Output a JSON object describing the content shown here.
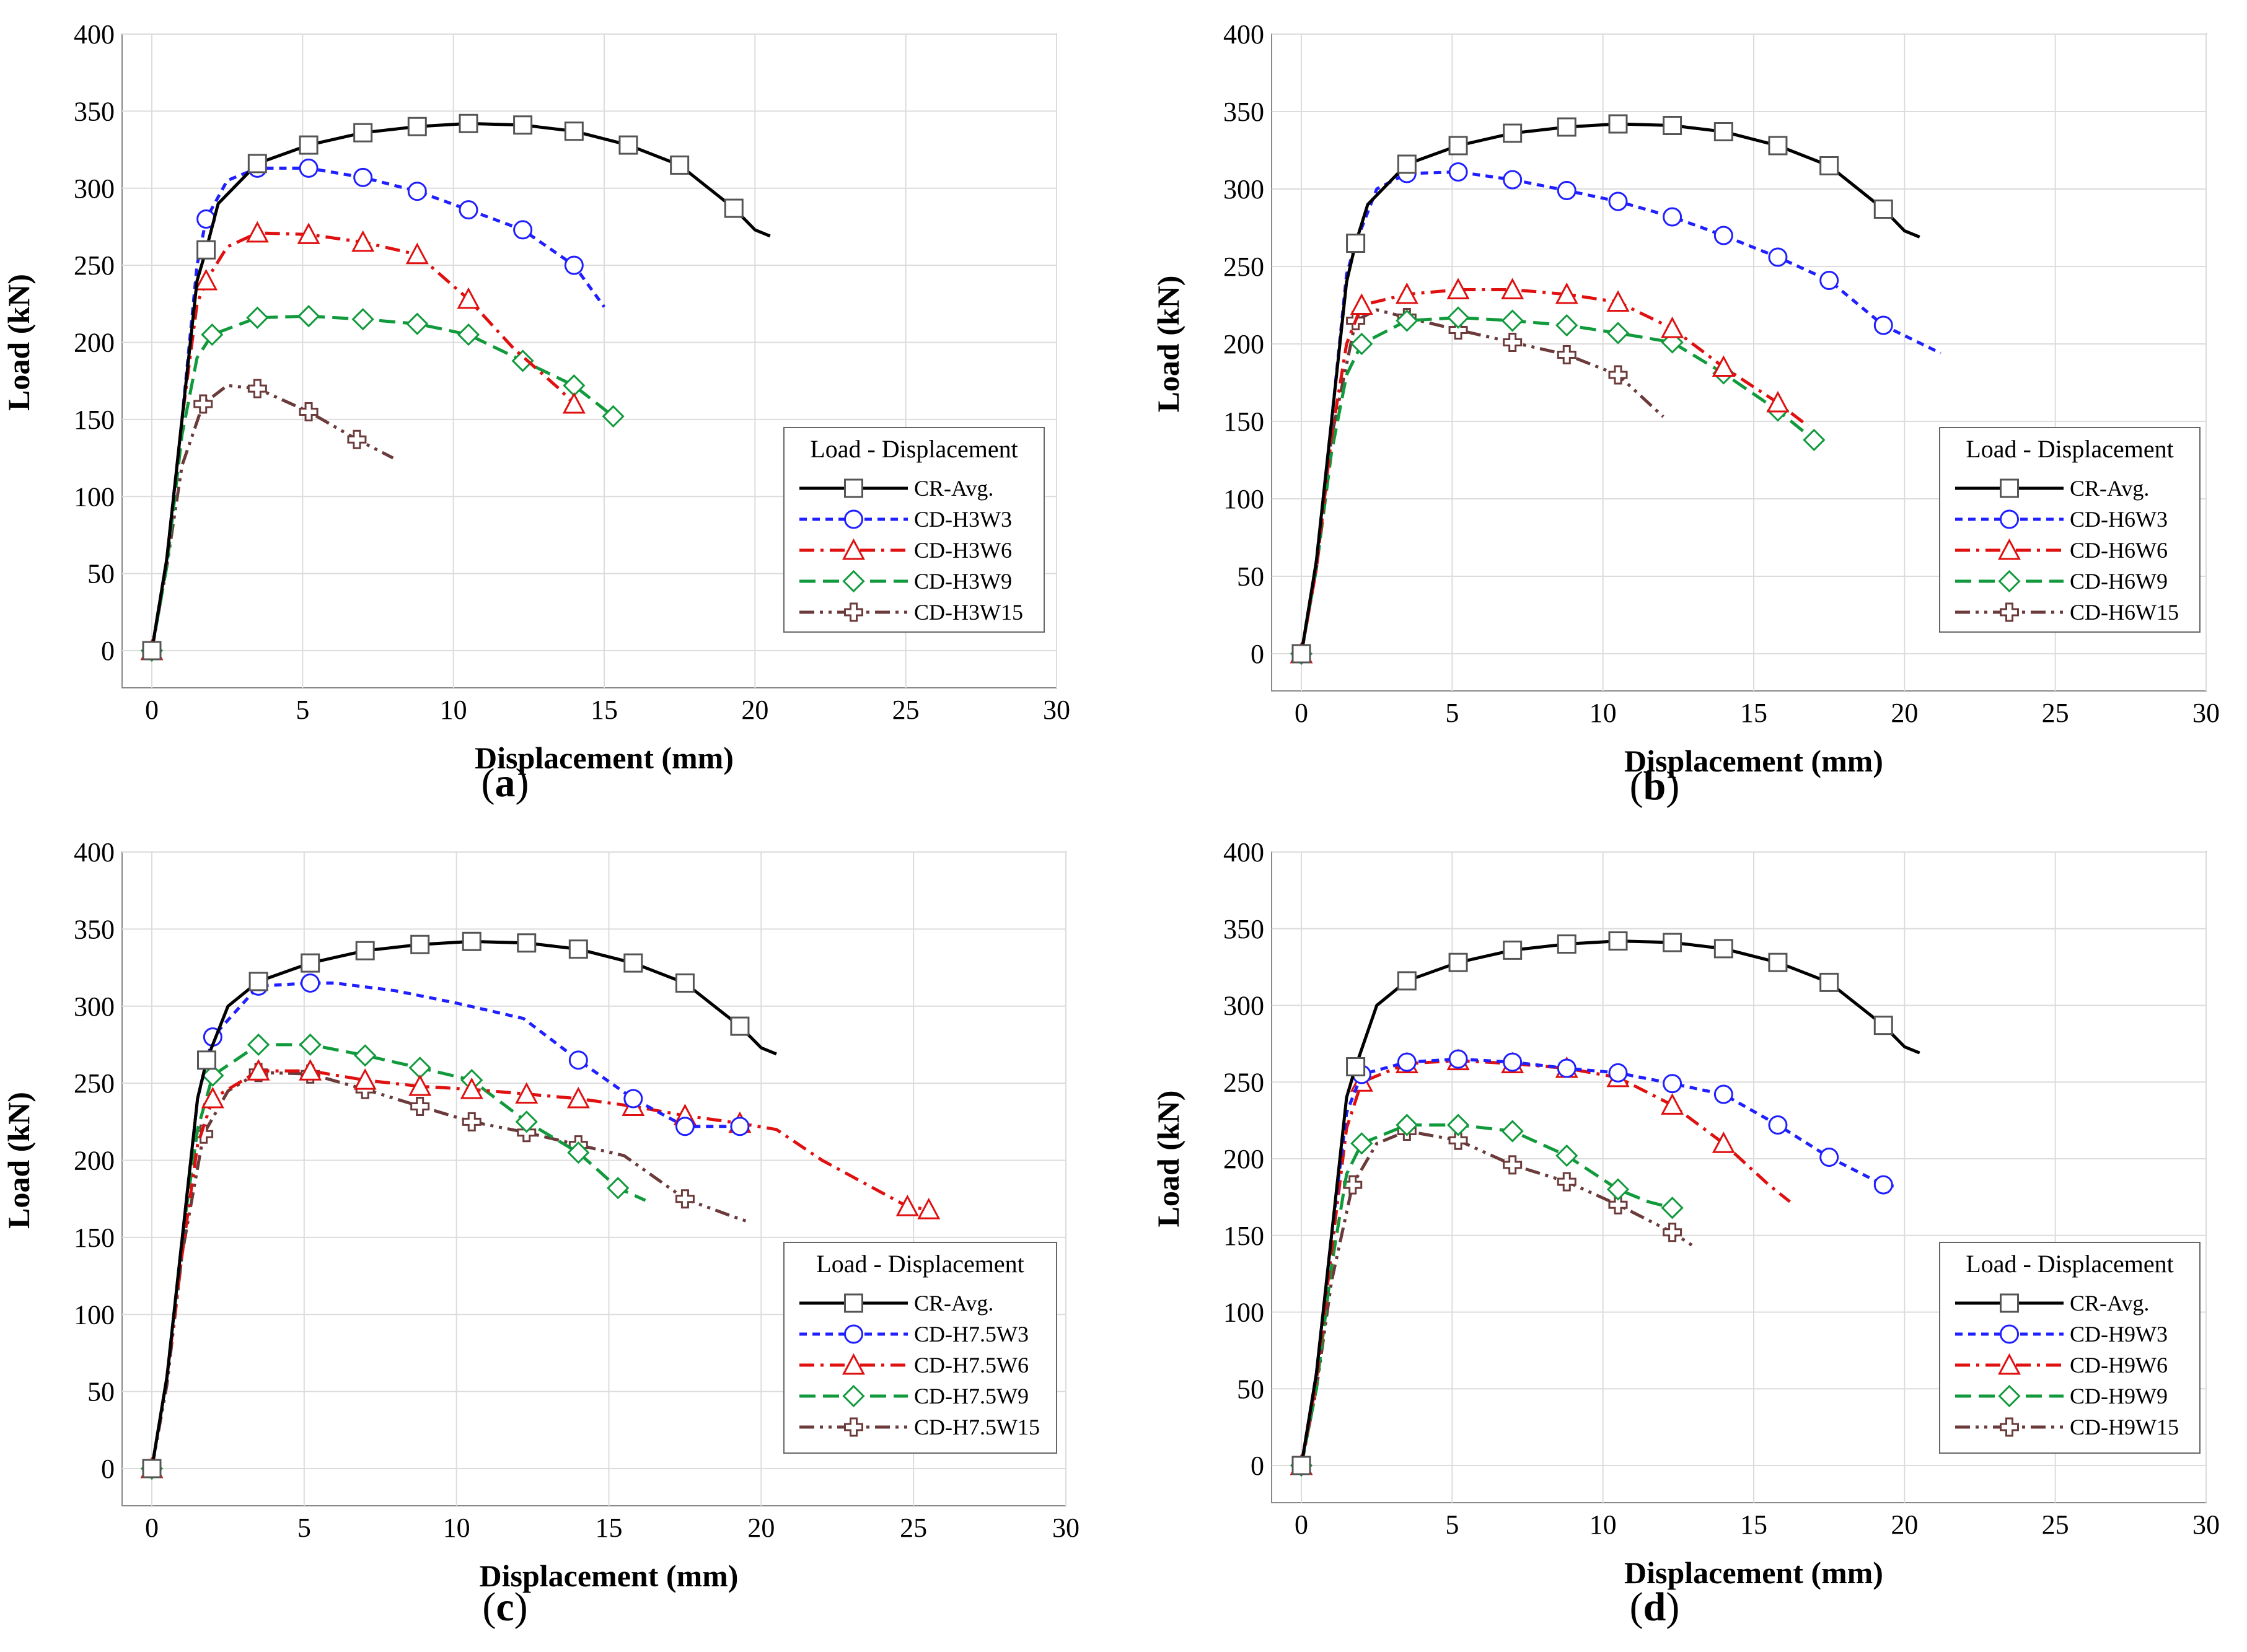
{
  "figure": {
    "shared": {
      "xlabel": "Displacement (mm)",
      "ylabel": "Load (kN)",
      "xlim": [
        0,
        30
      ],
      "ylim": [
        0,
        400
      ],
      "xticks": [
        0,
        5,
        10,
        15,
        20,
        25,
        30
      ],
      "yticks": [
        0,
        50,
        100,
        150,
        200,
        250,
        300,
        350,
        400
      ],
      "grid": true,
      "legend_title": "Load - Displacement",
      "legend_position": "bottom-right"
    },
    "series_styles": [
      {
        "color": "#000000",
        "dash": "none",
        "marker": "square"
      },
      {
        "color": "#1f1fff",
        "dash": "short-dash",
        "marker": "circle"
      },
      {
        "color": "#e01010",
        "dash": "dash-dot",
        "marker": "triangle"
      },
      {
        "color": "#109a3c",
        "dash": "long-dash",
        "marker": "diamond"
      },
      {
        "color": "#6b3a3a",
        "dash": "dash-dot-dot",
        "marker": "cross"
      }
    ]
  },
  "chart_data": [
    {
      "type": "line",
      "panel_label": "a",
      "series": [
        {
          "name": "CR-Avg.",
          "x": [
            0,
            0.5,
            1,
            1.5,
            1.8,
            2.2,
            3.5,
            5.2,
            7,
            8.8,
            10.5,
            12.3,
            14,
            15.8,
            17.5,
            19.3,
            20,
            20.5
          ],
          "y": [
            0,
            60,
            150,
            240,
            260,
            290,
            316,
            328,
            336,
            340,
            342,
            341,
            337,
            328,
            315,
            287,
            273,
            269
          ]
        },
        {
          "name": "CD-H3W3",
          "x": [
            0,
            0.5,
            1,
            1.5,
            1.8,
            2.5,
            3.5,
            5.2,
            7,
            8.8,
            10.5,
            12.3,
            14,
            15
          ],
          "y": [
            0,
            60,
            150,
            250,
            280,
            305,
            313,
            313,
            307,
            298,
            286,
            273,
            250,
            223
          ]
        },
        {
          "name": "CD-H3W6",
          "x": [
            0,
            0.5,
            1,
            1.5,
            1.8,
            2.5,
            3.5,
            5.2,
            7,
            8.8,
            10.5,
            12,
            13.5,
            14
          ],
          "y": [
            0,
            60,
            150,
            225,
            240,
            262,
            271,
            270,
            265,
            257,
            228,
            196,
            170,
            160
          ]
        },
        {
          "name": "CD-H3W9",
          "x": [
            0,
            0.5,
            1,
            1.5,
            2,
            3.5,
            5.2,
            7,
            8.8,
            10.5,
            12.3,
            14,
            15.3
          ],
          "y": [
            0,
            55,
            140,
            190,
            205,
            216,
            217,
            215,
            212,
            205,
            188,
            172,
            152
          ]
        },
        {
          "name": "CD-H3W15",
          "x": [
            0,
            0.5,
            1,
            1.7,
            2.5,
            3.5,
            5.2,
            6.8,
            7.5,
            8
          ],
          "y": [
            0,
            55,
            120,
            160,
            172,
            170,
            155,
            137,
            130,
            125
          ]
        }
      ]
    },
    {
      "type": "line",
      "panel_label": "b",
      "series": [
        {
          "name": "CR-Avg.",
          "x": [
            0,
            0.5,
            1,
            1.5,
            1.8,
            2.2,
            3.5,
            5.2,
            7,
            8.8,
            10.5,
            12.3,
            14,
            15.8,
            17.5,
            19.3,
            20,
            20.5
          ],
          "y": [
            0,
            60,
            150,
            240,
            265,
            290,
            316,
            328,
            336,
            340,
            342,
            341,
            337,
            328,
            315,
            287,
            273,
            269
          ]
        },
        {
          "name": "CD-H6W3",
          "x": [
            0,
            0.5,
            1,
            1.5,
            1.8,
            2.5,
            3.5,
            5.2,
            7,
            8.8,
            10.5,
            12.3,
            14,
            15.8,
            17.5,
            19.3,
            21.2
          ],
          "y": [
            0,
            60,
            150,
            245,
            265,
            300,
            310,
            311,
            306,
            299,
            292,
            282,
            270,
            256,
            241,
            212,
            194
          ]
        },
        {
          "name": "CD-H6W6",
          "x": [
            0,
            0.5,
            1,
            1.5,
            2,
            3.5,
            5.2,
            7,
            8.8,
            10.5,
            12.3,
            14,
            15.8,
            16.8
          ],
          "y": [
            0,
            55,
            140,
            200,
            225,
            232,
            235,
            235,
            232,
            227,
            210,
            185,
            162,
            147
          ]
        },
        {
          "name": "CD-H6W9",
          "x": [
            0,
            0.5,
            1,
            1.5,
            2,
            3.5,
            5.2,
            7,
            8.8,
            10.5,
            12.3,
            14,
            15.8,
            17
          ],
          "y": [
            0,
            55,
            130,
            180,
            200,
            215,
            217,
            215,
            212,
            207,
            201,
            181,
            157,
            138
          ]
        },
        {
          "name": "CD-H6W15",
          "x": [
            0,
            0.5,
            1,
            1.8,
            2.5,
            3.5,
            5.2,
            7,
            8.8,
            10.5,
            12
          ],
          "y": [
            0,
            55,
            140,
            215,
            222,
            217,
            209,
            201,
            193,
            180,
            153
          ]
        }
      ]
    },
    {
      "type": "line",
      "panel_label": "c",
      "series": [
        {
          "name": "CR-Avg.",
          "x": [
            0,
            0.5,
            1,
            1.5,
            1.8,
            2.5,
            3.5,
            5.2,
            7,
            8.8,
            10.5,
            12.3,
            14,
            15.8,
            17.5,
            19.3,
            20,
            20.5
          ],
          "y": [
            0,
            60,
            150,
            240,
            265,
            300,
            316,
            328,
            336,
            340,
            342,
            341,
            337,
            328,
            315,
            287,
            273,
            269
          ]
        },
        {
          "name": "CD-H7.5W3",
          "x": [
            0,
            0.5,
            1,
            1.5,
            2,
            3.5,
            5.2,
            6,
            8,
            10,
            12.2,
            14,
            15.8,
            17.5,
            19.3
          ],
          "y": [
            0,
            60,
            150,
            240,
            280,
            313,
            315,
            315,
            310,
            302,
            292,
            265,
            240,
            222,
            222
          ]
        },
        {
          "name": "CD-H7.5W6",
          "x": [
            0,
            0.5,
            1,
            1.5,
            2,
            3.5,
            5.2,
            7,
            8.8,
            10.5,
            12.3,
            14,
            15.8,
            17.5,
            19.3,
            20.5,
            22,
            24.8,
            25.5
          ],
          "y": [
            0,
            60,
            140,
            210,
            240,
            258,
            258,
            252,
            248,
            246,
            243,
            240,
            235,
            229,
            224,
            220,
            200,
            170,
            168
          ]
        },
        {
          "name": "CD-H7.5W9",
          "x": [
            0,
            0.5,
            1,
            1.5,
            2,
            3.5,
            5.2,
            7,
            8.8,
            10.5,
            12.3,
            14,
            15.3,
            16.2
          ],
          "y": [
            0,
            60,
            150,
            220,
            255,
            275,
            275,
            268,
            260,
            252,
            225,
            205,
            182,
            174
          ]
        },
        {
          "name": "CD-H7.5W15",
          "x": [
            0,
            0.5,
            1,
            1.7,
            2.5,
            3.5,
            5.2,
            7,
            8.8,
            10.5,
            12.3,
            14,
            15.5,
            17.5,
            19,
            19.6
          ],
          "y": [
            0,
            55,
            140,
            217,
            245,
            257,
            256,
            246,
            235,
            225,
            218,
            210,
            203,
            175,
            164,
            160
          ]
        }
      ]
    },
    {
      "type": "line",
      "panel_label": "d",
      "series": [
        {
          "name": "CR-Avg.",
          "x": [
            0,
            0.5,
            1,
            1.5,
            1.8,
            2.5,
            3.5,
            5.2,
            7,
            8.8,
            10.5,
            12.3,
            14,
            15.8,
            17.5,
            19.3,
            20,
            20.5
          ],
          "y": [
            0,
            60,
            150,
            240,
            260,
            300,
            316,
            328,
            336,
            340,
            342,
            341,
            337,
            328,
            315,
            287,
            273,
            269
          ]
        },
        {
          "name": "CD-H9W3",
          "x": [
            0,
            0.5,
            1,
            1.5,
            2,
            3.5,
            5.2,
            7,
            8.8,
            10.5,
            12.3,
            14,
            15.8,
            17.5,
            19.3,
            19.7
          ],
          "y": [
            0,
            60,
            150,
            230,
            255,
            263,
            265,
            263,
            259,
            256,
            249,
            242,
            222,
            201,
            183,
            182
          ]
        },
        {
          "name": "CD-H9W6",
          "x": [
            0,
            0.5,
            1,
            1.5,
            2,
            3.5,
            5.2,
            7,
            8.8,
            10.5,
            12.3,
            14,
            15.5,
            16.2
          ],
          "y": [
            0,
            55,
            140,
            220,
            250,
            262,
            264,
            262,
            259,
            253,
            235,
            210,
            183,
            172
          ]
        },
        {
          "name": "CD-H9W9",
          "x": [
            0,
            0.5,
            1,
            1.5,
            2,
            3.5,
            5.2,
            7,
            8.8,
            10.5,
            11.5,
            12.3
          ],
          "y": [
            0,
            50,
            130,
            190,
            210,
            222,
            222,
            218,
            202,
            180,
            172,
            168
          ]
        },
        {
          "name": "CD-H9W15",
          "x": [
            0,
            0.5,
            1,
            1.7,
            2.5,
            3.5,
            5.2,
            7,
            8.8,
            10.5,
            12.3,
            13
          ],
          "y": [
            0,
            50,
            120,
            183,
            210,
            218,
            212,
            196,
            185,
            170,
            152,
            143
          ]
        }
      ]
    }
  ]
}
